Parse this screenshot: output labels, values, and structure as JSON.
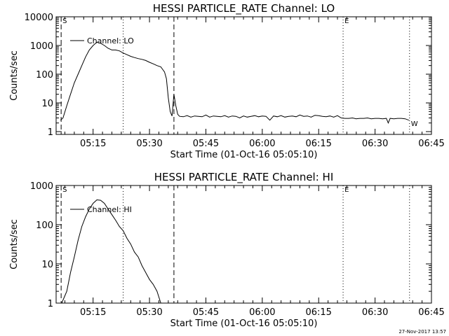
{
  "footer_timestamp": "27-Nov-2017 13:57",
  "chart_data": [
    {
      "type": "line",
      "title": "HESSI PARTICLE_RATE Channel: LO",
      "xlabel": "Start Time (01-Oct-16 05:05:10)",
      "ylabel": "Counts/sec",
      "y_scale": "log",
      "ylim": [
        0.8,
        10000
      ],
      "xlim": [
        "05:05:10",
        "06:45:00"
      ],
      "x_ticks": [
        "05:15",
        "05:30",
        "05:45",
        "06:00",
        "06:15",
        "06:30",
        "06:45"
      ],
      "y_ticks": [
        "1",
        "10",
        "100",
        "1000",
        "10000"
      ],
      "legend": "top-left",
      "series": [
        {
          "name": "Channel: LO",
          "x": [
            "05:06:20",
            "05:07:00",
            "05:08:00",
            "05:09:00",
            "05:10:00",
            "05:11:00",
            "05:12:00",
            "05:13:00",
            "05:14:00",
            "05:15:00",
            "05:16:00",
            "05:17:00",
            "05:18:00",
            "05:19:00",
            "05:20:00",
            "05:21:00",
            "05:22:00",
            "05:23:00",
            "05:24:00",
            "05:25:00",
            "05:26:00",
            "05:27:00",
            "05:28:00",
            "05:29:00",
            "05:30:00",
            "05:31:00",
            "05:32:00",
            "05:33:00",
            "05:34:00",
            "05:34:30",
            "05:35:00",
            "05:35:30",
            "05:36:00",
            "05:36:30",
            "05:37:00",
            "05:37:30",
            "05:38:00",
            "05:39:00",
            "05:40:00",
            "05:41:00",
            "05:42:00",
            "05:43:00",
            "05:44:00",
            "05:45:00",
            "05:46:00",
            "05:47:00",
            "05:48:00",
            "05:49:00",
            "05:50:00",
            "05:51:00",
            "05:52:00",
            "05:53:00",
            "05:54:00",
            "05:55:00",
            "05:56:00",
            "05:57:00",
            "05:58:00",
            "05:59:00",
            "06:00:00",
            "06:01:00",
            "06:02:00",
            "06:03:00",
            "06:04:00",
            "06:05:00",
            "06:06:00",
            "06:07:00",
            "06:08:00",
            "06:09:00",
            "06:10:00",
            "06:11:00",
            "06:12:00",
            "06:13:00",
            "06:14:00",
            "06:15:00",
            "06:16:00",
            "06:17:00",
            "06:18:00",
            "06:19:00",
            "06:20:00",
            "06:21:00",
            "06:22:00",
            "06:23:00",
            "06:24:00",
            "06:25:00",
            "06:26:00",
            "06:27:00",
            "06:28:00",
            "06:29:00",
            "06:30:00",
            "06:31:00",
            "06:32:00",
            "06:33:00",
            "06:33:30",
            "06:34:00",
            "06:35:00",
            "06:36:00",
            "06:37:00",
            "06:38:00",
            "06:39:00"
          ],
          "values": [
            2.5,
            3,
            8,
            20,
            50,
            100,
            200,
            400,
            700,
            1000,
            1300,
            1200,
            1000,
            800,
            700,
            700,
            650,
            550,
            480,
            420,
            380,
            350,
            330,
            300,
            260,
            230,
            200,
            180,
            120,
            70,
            15,
            5,
            3.5,
            20,
            8,
            4,
            3.4,
            3.3,
            3.6,
            3.2,
            3.5,
            3.4,
            3.3,
            3.8,
            3.2,
            3.5,
            3.4,
            3.3,
            3.6,
            3.2,
            3.5,
            3.4,
            3.0,
            3.5,
            3.2,
            3.4,
            3.6,
            3.3,
            3.5,
            3.4,
            2.5,
            3.5,
            3.3,
            3.6,
            3.2,
            3.4,
            3.5,
            3.3,
            3.8,
            3.4,
            3.5,
            3.2,
            3.7,
            3.6,
            3.4,
            3.3,
            3.5,
            3.2,
            3.6,
            3.0,
            2.9,
            2.9,
            3.0,
            2.8,
            2.9,
            2.9,
            3.0,
            2.8,
            2.9,
            2.9,
            2.8,
            2.9,
            2.0,
            2.9,
            2.8,
            2.9,
            2.9,
            2.8,
            2.5
          ]
        }
      ],
      "markers": [
        {
          "label": "S",
          "time": "05:06:30",
          "style": "dashed"
        },
        {
          "label": "",
          "time": "05:36:30",
          "style": "dashed"
        },
        {
          "label": "",
          "time": "05:23:00",
          "style": "dotted"
        },
        {
          "label": "E",
          "time": "06:21:30",
          "style": "dotted"
        },
        {
          "label": "W",
          "time": "06:39:10",
          "style": "dotted"
        }
      ]
    },
    {
      "type": "line",
      "title": "HESSI PARTICLE_RATE Channel: HI",
      "xlabel": "Start Time (01-Oct-16 05:05:10)",
      "ylabel": "Counts/sec",
      "y_scale": "log",
      "ylim": [
        1,
        1000
      ],
      "xlim": [
        "05:05:10",
        "06:45:00"
      ],
      "x_ticks": [
        "05:15",
        "05:30",
        "05:45",
        "06:00",
        "06:15",
        "06:30",
        "06:45"
      ],
      "y_ticks": [
        "1",
        "10",
        "100",
        "1000"
      ],
      "legend": "top-left",
      "series": [
        {
          "name": "Channel: HI",
          "x": [
            "05:06:40",
            "05:08:00",
            "05:09:00",
            "05:10:00",
            "05:11:00",
            "05:12:00",
            "05:13:00",
            "05:14:00",
            "05:15:00",
            "05:16:00",
            "05:17:00",
            "05:18:00",
            "05:19:00",
            "05:20:00",
            "05:21:00",
            "05:22:00",
            "05:23:00",
            "05:24:00",
            "05:25:00",
            "05:26:00",
            "05:27:00",
            "05:28:00",
            "05:29:00",
            "05:30:00",
            "05:31:00",
            "05:32:00",
            "05:33:00"
          ],
          "values": [
            1,
            2,
            6,
            15,
            40,
            90,
            160,
            250,
            350,
            430,
            420,
            350,
            250,
            180,
            130,
            90,
            70,
            45,
            32,
            20,
            15,
            9,
            6,
            4,
            3,
            2,
            1
          ]
        }
      ],
      "markers": [
        {
          "label": "S",
          "time": "05:06:30",
          "style": "dashed"
        },
        {
          "label": "",
          "time": "05:36:30",
          "style": "dashed"
        },
        {
          "label": "",
          "time": "05:23:00",
          "style": "dotted"
        },
        {
          "label": "E",
          "time": "06:21:30",
          "style": "dotted"
        },
        {
          "label": "",
          "time": "06:39:10",
          "style": "dotted"
        }
      ]
    }
  ]
}
